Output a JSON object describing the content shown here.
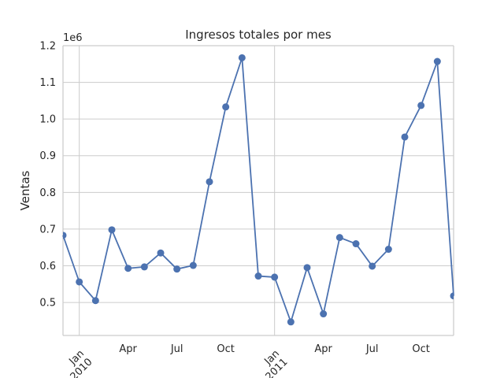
{
  "chart_data": {
    "type": "line",
    "title": "Ingresos totales por mes",
    "ylabel": "Ventas",
    "xlabel": "",
    "y_offset_label": "1e6",
    "ylim": [
      410000,
      1200000
    ],
    "y_ticks": [
      0.5,
      0.6,
      0.7,
      0.8,
      0.9,
      1.0,
      1.1,
      1.2
    ],
    "y_tick_labels": [
      "0.5",
      "0.6",
      "0.7",
      "0.8",
      "0.9",
      "1.0",
      "1.1",
      "1.2"
    ],
    "xlim": [
      "2009-12",
      "2011-12"
    ],
    "x_ticks": [
      {
        "date": "2010-01",
        "label": "Jan",
        "sublabel": "2010",
        "major": true
      },
      {
        "date": "2010-04",
        "label": "Apr",
        "sublabel": "",
        "major": false
      },
      {
        "date": "2010-07",
        "label": "Jul",
        "sublabel": "",
        "major": false
      },
      {
        "date": "2010-10",
        "label": "Oct",
        "sublabel": "",
        "major": false
      },
      {
        "date": "2011-01",
        "label": "Jan",
        "sublabel": "2011",
        "major": true
      },
      {
        "date": "2011-04",
        "label": "Apr",
        "sublabel": "",
        "major": false
      },
      {
        "date": "2011-07",
        "label": "Jul",
        "sublabel": "",
        "major": false
      },
      {
        "date": "2011-10",
        "label": "Oct",
        "sublabel": "",
        "major": false
      }
    ],
    "grid": true,
    "line_color": "#4c72b0",
    "x": [
      "2009-12",
      "2010-01",
      "2010-02",
      "2010-03",
      "2010-04",
      "2010-05",
      "2010-06",
      "2010-07",
      "2010-08",
      "2010-09",
      "2010-10",
      "2010-11",
      "2010-12",
      "2011-01",
      "2011-02",
      "2011-03",
      "2011-04",
      "2011-05",
      "2011-06",
      "2011-07",
      "2011-08",
      "2011-09",
      "2011-10",
      "2011-11",
      "2011-12"
    ],
    "values": [
      683000,
      556000,
      505000,
      698000,
      593000,
      597000,
      635000,
      591000,
      601000,
      829000,
      1033000,
      1167000,
      572000,
      569000,
      447000,
      595000,
      469000,
      677000,
      660000,
      599000,
      645000,
      951000,
      1037000,
      1157000,
      518000
    ]
  }
}
